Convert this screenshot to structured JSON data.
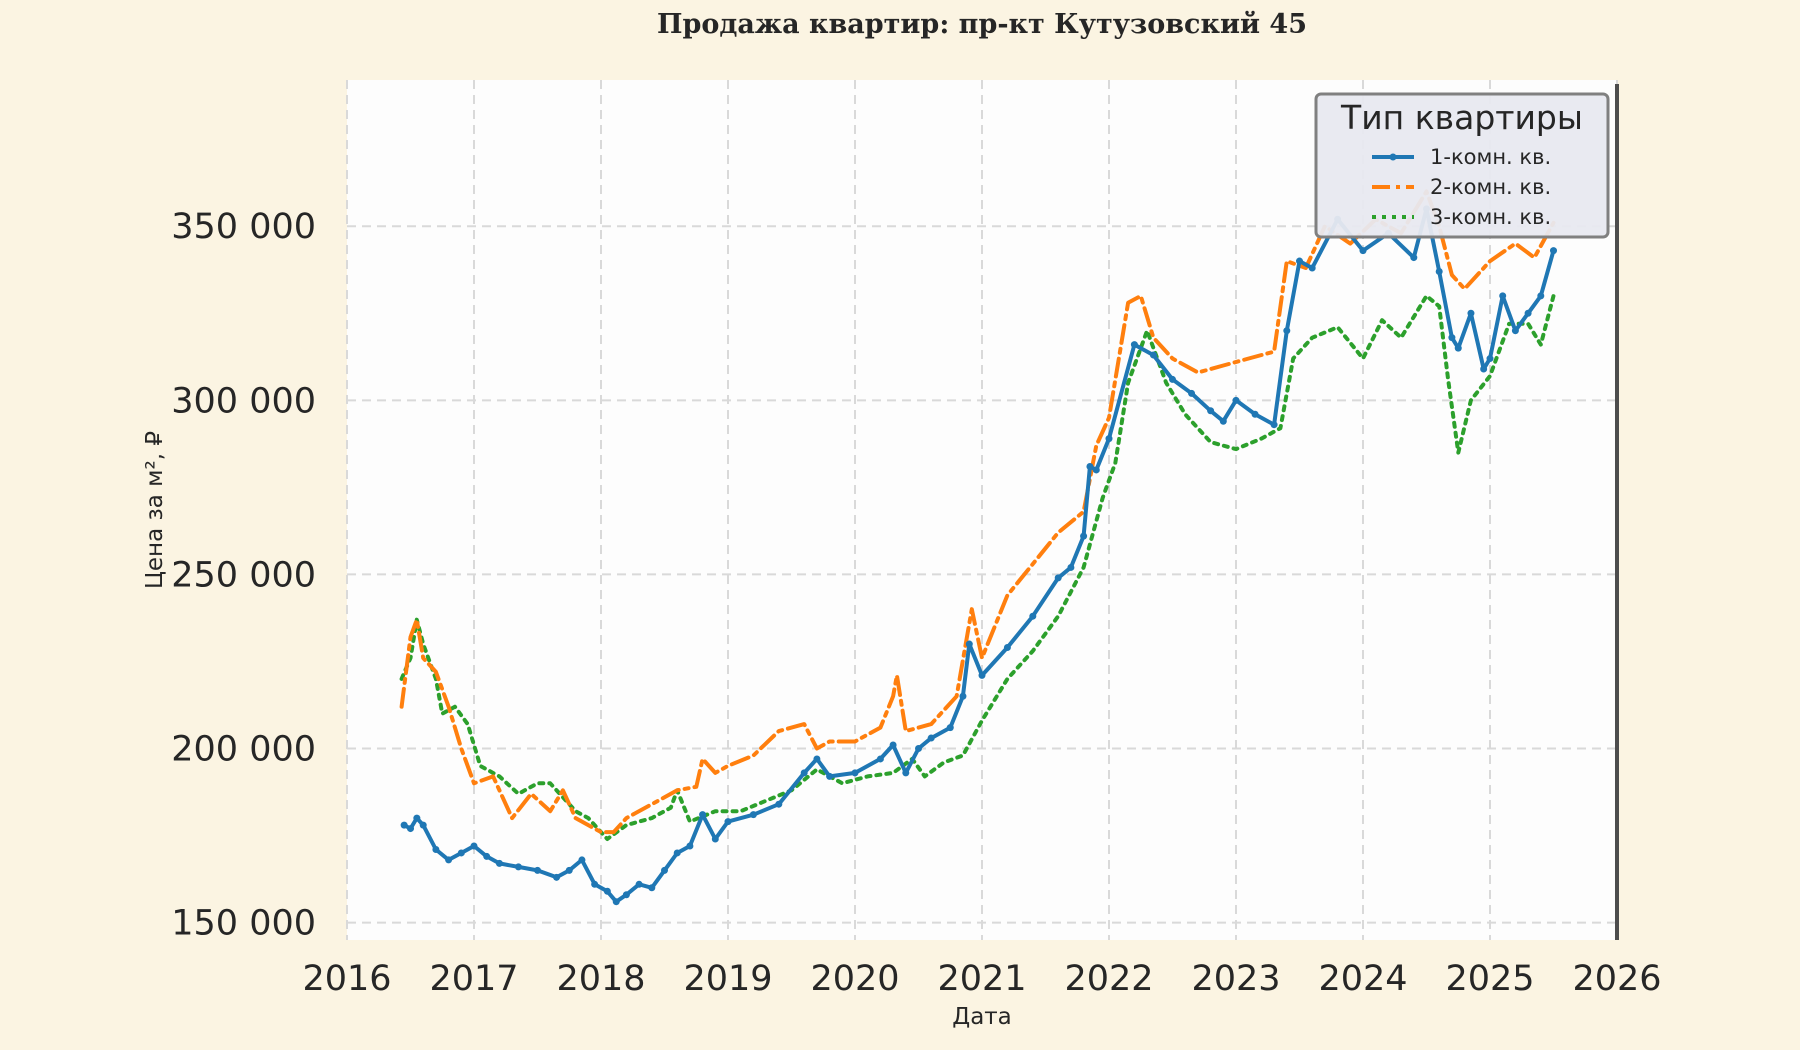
{
  "colors": {
    "page_bg": "#fbf4e2",
    "plot_bg": "#fdfdfd",
    "grid": "#d9d9d9",
    "text": "#262626",
    "axis_line": "#4d4d4d",
    "legend_bg": "#e8e9f0",
    "legend_border": "#808080"
  },
  "chart_data": {
    "type": "line",
    "title": "Продажа квартир: пр-кт Кутузовский 45",
    "xlabel": "Дата",
    "ylabel": "Цена за м², ₽",
    "xlim": [
      2016.0,
      2026.0
    ],
    "ylim": [
      145000,
      392000
    ],
    "x_ticks": [
      2016,
      2017,
      2018,
      2019,
      2020,
      2021,
      2022,
      2023,
      2024,
      2025,
      2026
    ],
    "x_tick_labels": [
      "2016",
      "2017",
      "2018",
      "2019",
      "2020",
      "2021",
      "2022",
      "2023",
      "2024",
      "2025",
      "2026"
    ],
    "y_ticks": [
      150000,
      200000,
      250000,
      300000,
      350000
    ],
    "y_tick_labels": [
      "150 000",
      "200 000",
      "250 000",
      "300 000",
      "350 000"
    ],
    "grid": true,
    "legend": {
      "title": "Тип квартиры",
      "position": "top-right",
      "items": [
        "1-комн. кв.",
        "2-комн. кв.",
        "3-комн. кв."
      ]
    },
    "series": [
      {
        "name": "1-комн. кв.",
        "color": "#1f77b4",
        "style": "solid-markers",
        "x": [
          2016.45,
          2016.5,
          2016.55,
          2016.6,
          2016.7,
          2016.8,
          2016.9,
          2017.0,
          2017.1,
          2017.2,
          2017.35,
          2017.5,
          2017.65,
          2017.75,
          2017.85,
          2017.95,
          2018.05,
          2018.12,
          2018.2,
          2018.3,
          2018.4,
          2018.5,
          2018.6,
          2018.7,
          2018.8,
          2018.9,
          2019.0,
          2019.2,
          2019.4,
          2019.6,
          2019.7,
          2019.8,
          2020.0,
          2020.2,
          2020.3,
          2020.4,
          2020.5,
          2020.6,
          2020.75,
          2020.85,
          2020.9,
          2021.0,
          2021.2,
          2021.4,
          2021.6,
          2021.7,
          2021.8,
          2021.85,
          2021.9,
          2022.0,
          2022.2,
          2022.35,
          2022.5,
          2022.65,
          2022.8,
          2022.9,
          2023.0,
          2023.15,
          2023.3,
          2023.4,
          2023.5,
          2023.6,
          2023.8,
          2024.0,
          2024.2,
          2024.4,
          2024.5,
          2024.6,
          2024.7,
          2024.75,
          2024.85,
          2024.95,
          2025.0,
          2025.1,
          2025.2,
          2025.3,
          2025.4,
          2025.5
        ],
        "y": [
          178000,
          177000,
          180000,
          178000,
          171000,
          168000,
          170000,
          172000,
          169000,
          167000,
          166000,
          165000,
          163000,
          165000,
          168000,
          161000,
          159000,
          156000,
          158000,
          161000,
          160000,
          165000,
          170000,
          172000,
          181000,
          174000,
          179000,
          181000,
          184000,
          193000,
          197000,
          192000,
          193000,
          197000,
          201000,
          193000,
          200000,
          203000,
          206000,
          215000,
          230000,
          221000,
          229000,
          238000,
          249000,
          252000,
          261000,
          281000,
          280000,
          289000,
          316000,
          313000,
          306000,
          302000,
          297000,
          294000,
          300000,
          296000,
          293000,
          320000,
          340000,
          338000,
          352000,
          343000,
          348000,
          341000,
          355000,
          337000,
          318000,
          315000,
          325000,
          309000,
          312000,
          330000,
          320000,
          325000,
          330000,
          343000
        ]
      },
      {
        "name": "2-комн. кв.",
        "color": "#ff7f0e",
        "style": "dashdot",
        "x": [
          2016.43,
          2016.5,
          2016.55,
          2016.6,
          2016.7,
          2016.8,
          2016.9,
          2017.0,
          2017.15,
          2017.3,
          2017.45,
          2017.6,
          2017.7,
          2017.8,
          2017.9,
          2018.0,
          2018.1,
          2018.2,
          2018.4,
          2018.6,
          2018.75,
          2018.8,
          2018.9,
          2019.0,
          2019.2,
          2019.4,
          2019.6,
          2019.7,
          2019.8,
          2020.0,
          2020.2,
          2020.3,
          2020.33,
          2020.4,
          2020.6,
          2020.8,
          2020.92,
          2021.0,
          2021.2,
          2021.4,
          2021.6,
          2021.8,
          2021.9,
          2022.0,
          2022.15,
          2022.25,
          2022.35,
          2022.5,
          2022.7,
          2022.9,
          2023.1,
          2023.3,
          2023.4,
          2023.55,
          2023.7,
          2023.9,
          2024.1,
          2024.3,
          2024.5,
          2024.6,
          2024.7,
          2024.8,
          2025.0,
          2025.2,
          2025.35,
          2025.5
        ],
        "y": [
          212000,
          232000,
          237000,
          226000,
          222000,
          212000,
          200000,
          190000,
          192000,
          180000,
          187000,
          182000,
          188000,
          180000,
          178000,
          176000,
          176000,
          180000,
          184000,
          188000,
          189000,
          197000,
          193000,
          195000,
          198000,
          205000,
          207000,
          200000,
          202000,
          202000,
          206000,
          215000,
          221000,
          205000,
          207000,
          215000,
          240000,
          226000,
          244000,
          253000,
          262000,
          268000,
          287000,
          295000,
          328000,
          330000,
          318000,
          312000,
          308000,
          310000,
          312000,
          314000,
          340000,
          338000,
          350000,
          345000,
          352000,
          348000,
          360000,
          350000,
          336000,
          332000,
          340000,
          345000,
          341000,
          351000
        ]
      },
      {
        "name": "3-комн. кв.",
        "color": "#2ca02c",
        "style": "dotted",
        "x": [
          2016.43,
          2016.5,
          2016.55,
          2016.6,
          2016.7,
          2016.75,
          2016.85,
          2016.95,
          2017.05,
          2017.2,
          2017.35,
          2017.5,
          2017.6,
          2017.7,
          2017.8,
          2017.9,
          2018.0,
          2018.05,
          2018.2,
          2018.4,
          2018.55,
          2018.6,
          2018.7,
          2018.9,
          2019.1,
          2019.3,
          2019.5,
          2019.7,
          2019.9,
          2020.1,
          2020.3,
          2020.45,
          2020.55,
          2020.7,
          2020.85,
          2021.0,
          2021.2,
          2021.4,
          2021.6,
          2021.8,
          2021.95,
          2022.05,
          2022.15,
          2022.3,
          2022.45,
          2022.6,
          2022.8,
          2023.0,
          2023.2,
          2023.35,
          2023.45,
          2023.6,
          2023.8,
          2024.0,
          2024.15,
          2024.3,
          2024.5,
          2024.6,
          2024.67,
          2024.75,
          2024.85,
          2025.0,
          2025.15,
          2025.3,
          2025.4,
          2025.5
        ],
        "y": [
          220000,
          226000,
          237000,
          230000,
          220000,
          210000,
          212000,
          207000,
          195000,
          192000,
          187000,
          190000,
          190000,
          186000,
          182000,
          180000,
          176000,
          174000,
          178000,
          180000,
          183000,
          188000,
          179000,
          182000,
          182000,
          185000,
          188000,
          194000,
          190000,
          192000,
          193000,
          197000,
          192000,
          196000,
          198000,
          208000,
          220000,
          228000,
          238000,
          252000,
          272000,
          282000,
          305000,
          320000,
          305000,
          296000,
          288000,
          286000,
          289000,
          292000,
          312000,
          318000,
          321000,
          312000,
          323000,
          318000,
          330000,
          327000,
          306000,
          285000,
          300000,
          307000,
          322000,
          322000,
          316000,
          330000
        ]
      }
    ]
  }
}
